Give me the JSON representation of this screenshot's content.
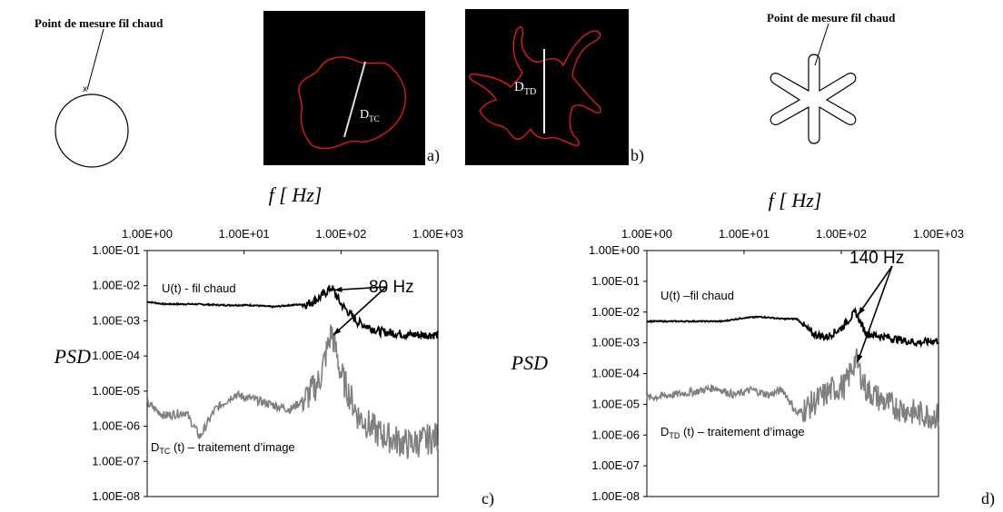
{
  "top_row": {
    "left_label": "Point de  mesure fil chaud",
    "right_label": "Point de mesure fil chaud",
    "marker_x": "x",
    "panel_a": {
      "letter": "a)",
      "diameter_label": "D",
      "diameter_sub": "TC"
    },
    "panel_b": {
      "letter": "b)",
      "diameter_label": "D",
      "diameter_sub": "TD"
    }
  },
  "chart_data": [
    {
      "type": "line",
      "panel": "c)",
      "xlabel": "f [ Hz]",
      "ylabel": "PSD",
      "x_scale": "log",
      "y_scale": "log",
      "xlim": [
        1,
        1000
      ],
      "ylim": [
        1e-08,
        0.1
      ],
      "x_ticks": [
        "1.00E+00",
        "1.00E+01",
        "1.00E+02",
        "1.00E+03"
      ],
      "y_ticks": [
        "1.00E-01",
        "1.00E-02",
        "1.00E-03",
        "1.00E-04",
        "1.00E-05",
        "1.00E-06",
        "1.00E-07",
        "1.00E-08"
      ],
      "annotation": "80 Hz",
      "series": [
        {
          "name": "U(t) -  fil chaud",
          "color": "#000000",
          "points": [
            [
              1,
              0.0035
            ],
            [
              1.5,
              0.003
            ],
            [
              3,
              0.003
            ],
            [
              6,
              0.0028
            ],
            [
              12,
              0.0028
            ],
            [
              20,
              0.0025
            ],
            [
              30,
              0.0028
            ],
            [
              45,
              0.003
            ],
            [
              60,
              0.0045
            ],
            [
              80,
              0.009
            ],
            [
              100,
              0.003
            ],
            [
              150,
              0.0009
            ],
            [
              250,
              0.0005
            ],
            [
              500,
              0.0004
            ],
            [
              1000,
              0.0004
            ]
          ]
        },
        {
          "name_main": "D",
          "name_sub": "TC",
          "name_rest": " (t) – traitement d’image",
          "color": "#808080",
          "points": [
            [
              1,
              4.5e-06
            ],
            [
              1.5,
              2e-06
            ],
            [
              2.5,
              2.5e-06
            ],
            [
              3.5,
              5e-07
            ],
            [
              5,
              3e-06
            ],
            [
              8,
              8e-06
            ],
            [
              12,
              6e-06
            ],
            [
              20,
              4e-06
            ],
            [
              30,
              3e-06
            ],
            [
              45,
              7e-06
            ],
            [
              60,
              2e-05
            ],
            [
              80,
              0.0005
            ],
            [
              100,
              3e-05
            ],
            [
              150,
              2e-06
            ],
            [
              250,
              6e-07
            ],
            [
              500,
              3e-07
            ],
            [
              1000,
              5e-07
            ]
          ]
        }
      ]
    },
    {
      "type": "line",
      "panel": "d)",
      "xlabel": "f [ Hz]",
      "ylabel": "PSD",
      "x_scale": "log",
      "y_scale": "log",
      "xlim": [
        1,
        1000
      ],
      "ylim": [
        1e-08,
        1
      ],
      "x_ticks": [
        "1.00E+00",
        "1.00E+01",
        "1.00E+02",
        "1.00E+03"
      ],
      "y_ticks": [
        "1.00E+00",
        "1.00E-01",
        "1.00E-02",
        "1.00E-03",
        "1.00E-04",
        "1.00E-05",
        "1.00E-06",
        "1.00E-07",
        "1.00E-08"
      ],
      "annotation": "140 Hz",
      "series": [
        {
          "name": "U(t) –fil chaud",
          "color": "#000000",
          "points": [
            [
              1,
              0.005
            ],
            [
              3,
              0.005
            ],
            [
              6,
              0.005
            ],
            [
              10,
              0.0065
            ],
            [
              15,
              0.007
            ],
            [
              25,
              0.006
            ],
            [
              35,
              0.006
            ],
            [
              50,
              0.002
            ],
            [
              70,
              0.0015
            ],
            [
              100,
              0.003
            ],
            [
              140,
              0.01
            ],
            [
              180,
              0.002
            ],
            [
              300,
              0.0015
            ],
            [
              600,
              0.001
            ],
            [
              1000,
              0.0012
            ]
          ]
        },
        {
          "name_main": "D",
          "name_sub": "TD",
          "name_rest": " (t) – traitement d’image",
          "color": "#808080",
          "points": [
            [
              1,
              1.6e-05
            ],
            [
              3,
              2.5e-05
            ],
            [
              5,
              3.5e-05
            ],
            [
              8,
              2e-05
            ],
            [
              12,
              3e-05
            ],
            [
              18,
              2e-05
            ],
            [
              25,
              3e-05
            ],
            [
              35,
              5e-06
            ],
            [
              50,
              1e-05
            ],
            [
              80,
              3e-05
            ],
            [
              110,
              4e-05
            ],
            [
              140,
              0.0003
            ],
            [
              180,
              3e-05
            ],
            [
              300,
              1e-05
            ],
            [
              600,
              5e-06
            ],
            [
              1000,
              4e-06
            ]
          ]
        }
      ]
    }
  ]
}
